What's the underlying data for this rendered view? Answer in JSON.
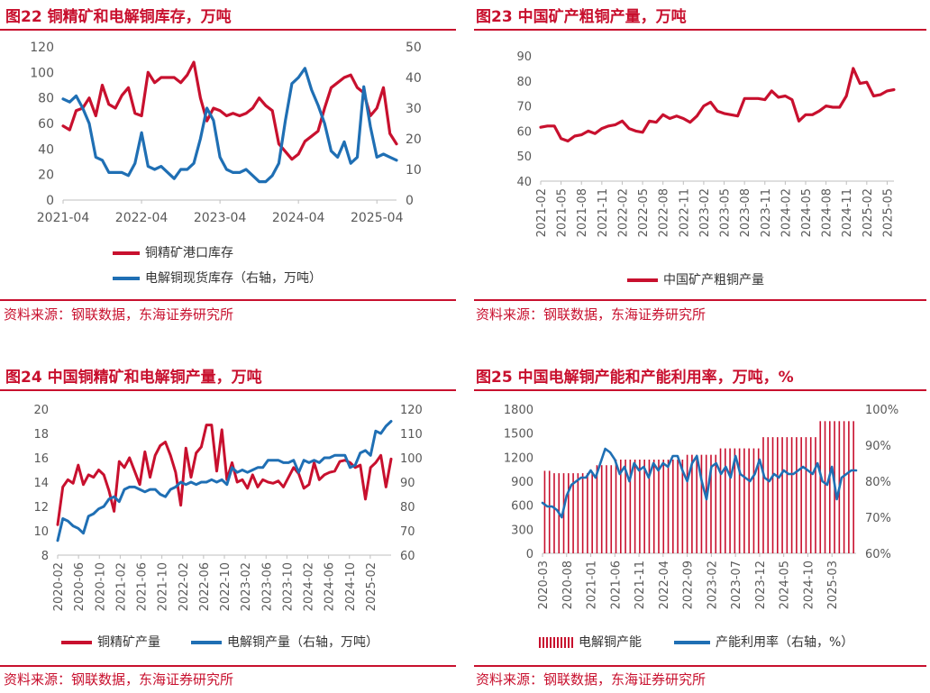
{
  "source_text": "资料来源：钢联数据，东海证券研究所",
  "colors": {
    "red": "#c8102e",
    "blue": "#1f6fb4",
    "title": "#c8102e",
    "grid": "#d9d9d9"
  },
  "charts": [
    {
      "id": "c22",
      "title": "图22  铜精矿和电解铜库存，万吨",
      "legend": [
        "铜精矿港口库存",
        "电解铜现货库存（右轴，万吨）"
      ],
      "chart_data": {
        "type": "line",
        "x_ticks": [
          "2021-04",
          "2022-04",
          "2023-04",
          "2024-04",
          "2025-04"
        ],
        "x_range": [
          0,
          51
        ],
        "x_tick_pos": [
          0,
          12,
          24,
          36,
          48
        ],
        "left_axis": {
          "min": 0,
          "max": 120,
          "ticks": [
            0,
            20,
            40,
            60,
            80,
            100,
            120
          ]
        },
        "right_axis": {
          "min": 0,
          "max": 50,
          "ticks": [
            0,
            10,
            20,
            30,
            40,
            50
          ]
        },
        "series": [
          {
            "name": "铜精矿港口库存",
            "axis": "left",
            "color": "#c8102e",
            "values": [
              58,
              55,
              70,
              72,
              80,
              66,
              90,
              75,
              72,
              82,
              88,
              68,
              66,
              100,
              92,
              96,
              96,
              96,
              92,
              98,
              108,
              80,
              62,
              72,
              70,
              66,
              68,
              66,
              68,
              72,
              80,
              74,
              70,
              44,
              38,
              32,
              36,
              46,
              50,
              54,
              72,
              88,
              92,
              96,
              98,
              88,
              84,
              66,
              72,
              88,
              52,
              44
            ]
          },
          {
            "name": "电解铜现货库存（右轴，万吨）",
            "axis": "right",
            "color": "#1f6fb4",
            "values": [
              33,
              32,
              34,
              30,
              25,
              14,
              13,
              9,
              9,
              9,
              8,
              12,
              22,
              11,
              10,
              11,
              9,
              7,
              10,
              10,
              12,
              20,
              30,
              26,
              14,
              10,
              9,
              9,
              10,
              8,
              6,
              6,
              8,
              12,
              26,
              38,
              40,
              43,
              36,
              31,
              25,
              16,
              14,
              19,
              12,
              14,
              37,
              24,
              14,
              15,
              14,
              13
            ]
          }
        ]
      }
    },
    {
      "id": "c23",
      "title": "图23  中国矿产粗铜产量，万吨",
      "legend": [
        "中国矿产粗铜产量"
      ],
      "chart_data": {
        "type": "line",
        "x_ticks": [
          "2021-02",
          "2021-05",
          "2021-08",
          "2021-11",
          "2022-02",
          "2022-05",
          "2022-08",
          "2022-11",
          "2023-02",
          "2023-05",
          "2023-08",
          "2023-11",
          "2024-02",
          "2024-05",
          "2024-08",
          "2024-11",
          "2025-02",
          "2025-05"
        ],
        "x_range": [
          0,
          52
        ],
        "x_tick_pos": [
          0,
          3,
          6,
          9,
          12,
          15,
          18,
          21,
          24,
          27,
          30,
          33,
          36,
          39,
          42,
          45,
          48,
          51
        ],
        "left_axis": {
          "min": 40,
          "max": 90,
          "ticks": [
            40,
            50,
            60,
            70,
            80,
            90
          ]
        },
        "series": [
          {
            "name": "中国矿产粗铜产量",
            "axis": "left",
            "color": "#c8102e",
            "values": [
              61.5,
              62,
              62,
              57,
              56,
              58,
              58.5,
              60,
              59,
              61,
              62,
              62.5,
              64,
              61,
              60,
              59.5,
              64,
              63.5,
              66.5,
              65,
              66,
              65,
              63.5,
              66,
              70,
              71.5,
              68,
              67,
              66.5,
              66,
              73,
              73,
              73,
              72.5,
              76,
              73.5,
              74,
              72.5,
              64,
              66.5,
              66.5,
              68,
              70,
              69.5,
              69.5,
              74,
              85,
              79,
              79.5,
              74,
              74.5,
              76,
              76.5
            ]
          }
        ]
      }
    },
    {
      "id": "c24",
      "title": "图24  中国铜精矿和电解铜产量，万吨",
      "legend": [
        "铜精矿产量",
        "电解铜产量（右轴，万吨）"
      ],
      "chart_data": {
        "type": "line",
        "x_ticks": [
          "2020-02",
          "2020-06",
          "2020-10",
          "2021-02",
          "2021-06",
          "2021-10",
          "2022-02",
          "2022-06",
          "2022-10",
          "2023-02",
          "2023-06",
          "2023-10",
          "2024-02",
          "2024-06",
          "2024-10",
          "2025-02"
        ],
        "x_range": [
          0,
          64
        ],
        "x_tick_pos": [
          0,
          4,
          8,
          12,
          16,
          20,
          24,
          28,
          32,
          36,
          40,
          44,
          48,
          52,
          56,
          60
        ],
        "left_axis": {
          "min": 8,
          "max": 20,
          "ticks": [
            8,
            10,
            12,
            14,
            16,
            18,
            20
          ]
        },
        "right_axis": {
          "min": 60,
          "max": 120,
          "ticks": [
            60,
            70,
            80,
            90,
            100,
            110,
            120
          ]
        },
        "series": [
          {
            "name": "铜精矿产量",
            "axis": "left",
            "color": "#c8102e",
            "values": [
              10.5,
              13.6,
              14.2,
              13.9,
              15.4,
              13.8,
              14.6,
              14.4,
              15.0,
              14.6,
              13.3,
              11.6,
              15.7,
              15.2,
              16.0,
              14.9,
              13.8,
              16.5,
              14.4,
              16.2,
              17.0,
              17.3,
              16.2,
              14.8,
              12.1,
              16.8,
              14.4,
              16.4,
              16.9,
              18.7,
              18.7,
              14.9,
              18.3,
              14.2,
              15.6,
              14.0,
              14.2,
              13.5,
              14.6,
              13.6,
              14.2,
              14.0,
              13.9,
              14.1,
              13.6,
              14.4,
              15.2,
              14.7,
              13.5,
              13.8,
              15.6,
              14.2,
              14.6,
              14.8,
              14.9,
              15.7,
              15.8,
              15.6,
              15.2,
              15.4,
              12.6,
              15.2,
              15.6,
              16.2,
              13.6,
              15.9
            ]
          },
          {
            "name": "电解铜产量（右轴，万吨）",
            "axis": "right",
            "color": "#1f6fb4",
            "values": [
              66,
              75,
              74,
              72,
              71,
              69,
              76,
              77,
              79,
              80,
              83,
              84,
              82,
              87,
              88,
              88,
              87,
              86,
              87,
              87,
              85,
              84,
              87,
              88,
              90,
              89,
              90,
              89,
              90,
              90,
              91,
              90,
              91,
              89,
              96,
              94,
              95,
              94,
              95,
              96,
              96,
              99,
              99,
              99,
              98,
              98,
              99,
              94,
              99,
              98,
              99,
              98,
              100,
              100,
              101,
              101,
              101,
              96,
              97,
              102,
              103,
              101,
              111,
              110,
              113,
              115
            ]
          }
        ]
      }
    },
    {
      "id": "c25",
      "title": "图25  中国电解铜产能和产能利用率，万吨，%",
      "legend": [
        "电解铜产能",
        "产能利用率（右轴，%）"
      ],
      "chart_data": {
        "type": "bar+line",
        "x_ticks": [
          "2020-03",
          "2020-08",
          "2021-01",
          "2021-06",
          "2021-11",
          "2022-04",
          "2022-09",
          "2023-02",
          "2023-07",
          "2023-12",
          "2024-05",
          "2024-10",
          "2025-03"
        ],
        "x_range": [
          0,
          65
        ],
        "x_tick_pos": [
          0,
          5,
          10,
          15,
          20,
          25,
          30,
          35,
          40,
          45,
          50,
          55,
          60
        ],
        "left_axis": {
          "min": 0,
          "max": 1800,
          "ticks": [
            0,
            300,
            600,
            900,
            1200,
            1500,
            1800
          ]
        },
        "right_axis": {
          "min": 60,
          "max": 100,
          "ticks": [
            "60%",
            "70%",
            "80%",
            "90%",
            "100%"
          ],
          "tick_values": [
            60,
            70,
            80,
            90,
            100
          ]
        },
        "series": [
          {
            "name": "电解铜产能",
            "type": "bar",
            "axis": "left",
            "color": "#c8102e",
            "values": [
              1030,
              1030,
              1000,
              1000,
              1000,
              1000,
              1000,
              1000,
              1000,
              1000,
              1000,
              1100,
              1100,
              1100,
              1100,
              1170,
              1170,
              1170,
              1170,
              1170,
              1170,
              1170,
              1170,
              1170,
              1170,
              1170,
              1170,
              1170,
              1170,
              1170,
              1230,
              1230,
              1230,
              1230,
              1230,
              1230,
              1230,
              1310,
              1310,
              1310,
              1310,
              1310,
              1310,
              1310,
              1310,
              1310,
              1450,
              1450,
              1450,
              1450,
              1450,
              1450,
              1450,
              1450,
              1450,
              1450,
              1450,
              1450,
              1650,
              1650,
              1650,
              1650,
              1650,
              1650,
              1650,
              1650
            ]
          },
          {
            "name": "产能利用率（右轴，%）",
            "type": "line",
            "axis": "right",
            "color": "#1f6fb4",
            "values": [
              74,
              73,
              73,
              72,
              70,
              76,
              79,
              80,
              81,
              81,
              83,
              81,
              85,
              89,
              88,
              86,
              82,
              84,
              80,
              85,
              83,
              84,
              81,
              85,
              83,
              85,
              84,
              87,
              87,
              83,
              80,
              85,
              87,
              80,
              75,
              84,
              85,
              82,
              84,
              81,
              87,
              82,
              81,
              80,
              82,
              86,
              81,
              80,
              82,
              81,
              83,
              82,
              82,
              83,
              84,
              83,
              82,
              85,
              80,
              79,
              84,
              75,
              81,
              82,
              83,
              83
            ]
          }
        ]
      }
    }
  ]
}
